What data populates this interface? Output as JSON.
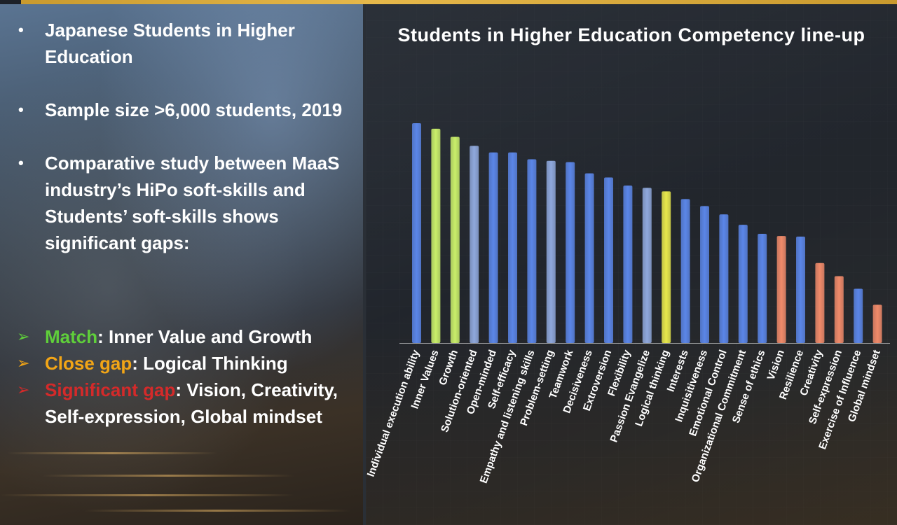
{
  "left": {
    "bullets": [
      "Japanese Students in Higher Education",
      "Sample size >6,000 students, 2019",
      "Comparative study between MaaS industry’s HiPo soft-skills and Students’ soft-skills shows significant gaps:"
    ],
    "gaps": [
      {
        "label": "Match",
        "text": ": Inner Value and Growth"
      },
      {
        "label": "Close gap",
        "text": ": Logical Thinking"
      },
      {
        "label": "Significant gap",
        "text": ": Vision, Creativity, Self-expression, Global mindset"
      }
    ],
    "bullet_glyph": "•",
    "arrow_glyph": "➢"
  },
  "colors": {
    "blue": "#5b86e8",
    "green": "#c9ee6a",
    "yellow": "#e8e84c",
    "salmon": "#f08a6a",
    "light_blue": "#8fa8dc"
  },
  "chart_data": {
    "type": "bar",
    "title": "Students in Higher Education Competency line-up",
    "categories": [
      "Individual execution ability",
      "Inner Values",
      "Growth",
      "Solution-oriented",
      "Open-minded",
      "Self-efficacy",
      "Empathy and listening skills",
      "Problem-setting",
      "Teamwork",
      "Decisiveness",
      "Extroversion",
      "Flexibility",
      "Passion Evangelize",
      "Logical thinking",
      "Interests",
      "Inquisitiveness",
      "Emotional Control",
      "Organizational Commitment",
      "Sense of ethics",
      "Vision",
      "Resilience",
      "Creativity",
      "Self-expression",
      "Exercise of Influence",
      "Global mindset"
    ],
    "values": [
      100,
      97.5,
      93.8,
      89.7,
      86.7,
      86.7,
      83.6,
      82.9,
      82.3,
      77.2,
      75.3,
      71.6,
      70.6,
      69,
      65.5,
      62.3,
      58.5,
      53.8,
      49.7,
      48.7,
      48.4,
      36.4,
      30.4,
      24.7,
      17.4
    ],
    "bar_colors": [
      "blue",
      "green",
      "green",
      "light_blue",
      "blue",
      "blue",
      "blue",
      "light_blue",
      "blue",
      "blue",
      "blue",
      "blue",
      "light_blue",
      "yellow",
      "blue",
      "blue",
      "blue",
      "blue",
      "blue",
      "salmon",
      "blue",
      "salmon",
      "salmon",
      "blue",
      "salmon"
    ],
    "ylim": [
      0,
      100
    ],
    "axes_shown": false,
    "grid": false,
    "legend": "none"
  }
}
